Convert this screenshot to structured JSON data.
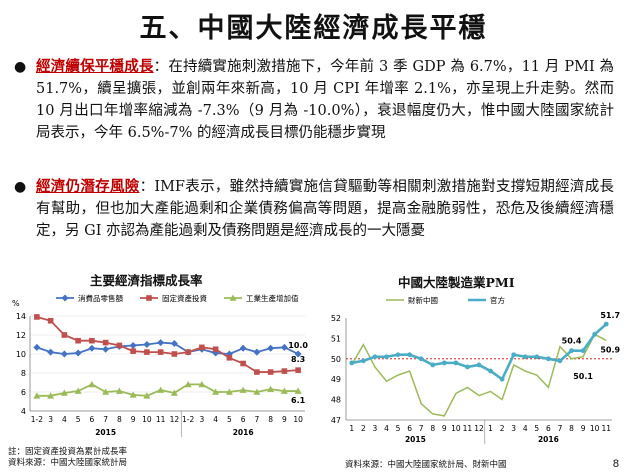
{
  "title": "五、中國大陸經濟成長平穩",
  "bullets": [
    {
      "symbol": "●",
      "highlight": "經濟續保平穩成長",
      "text": "：在持續實施刺激措施下，今年前 3 季 GDP 為 6.7%，11 月 PMI 為 51.7%，續呈擴張，並創兩年來新高，10 月 CPI 年增率 2.1%，亦呈現上升走勢。然而 10 月出口年增率縮減為 -7.3%（9 月為 -10.0%），衰退幅度仍大，惟中國大陸國家統計局表示，今年 6.5%-7% 的經濟成長目標仍能穩步實現"
    },
    {
      "symbol": "●",
      "highlight": "經濟仍潛存風險",
      "text": "：IMF表示，雖然持續實施信貸驅動等相關刺激措施對支撐短期經濟成長有幫助，但也加大產能過剩和企業債務偏高等問題，提高金融脆弱性，恐危及後續經濟穩定，另 GI 亦認為產能過剩及債務問題是經濟成長的一大隱憂"
    }
  ],
  "chart_data": [
    {
      "type": "line",
      "title": "主要經濟指標成長率",
      "ylabel": "%",
      "ylim": [
        4,
        14
      ],
      "yticks": [
        4,
        6,
        8,
        10,
        12,
        14
      ],
      "categories": [
        "1-2",
        "3",
        "4",
        "5",
        "6",
        "7",
        "8",
        "9",
        "10",
        "11",
        "12",
        "1-2",
        "3",
        "4",
        "5",
        "6",
        "7",
        "8",
        "9",
        "10"
      ],
      "year_labels": [
        "2015",
        "2016"
      ],
      "series": [
        {
          "name": "消費品零售額",
          "color": "#4472c4",
          "marker": "diamond",
          "values": [
            10.7,
            10.2,
            10.0,
            10.1,
            10.6,
            10.5,
            10.8,
            10.9,
            11.0,
            11.2,
            11.1,
            10.2,
            10.5,
            10.1,
            10.0,
            10.6,
            10.2,
            10.6,
            10.7,
            10.0
          ]
        },
        {
          "name": "固定資產投資",
          "color": "#c0504d",
          "marker": "square",
          "values": [
            13.9,
            13.5,
            12.0,
            11.4,
            11.4,
            11.2,
            10.9,
            10.3,
            10.2,
            10.2,
            10.0,
            10.2,
            10.7,
            10.5,
            9.6,
            9.0,
            8.1,
            8.1,
            8.2,
            8.3
          ]
        },
        {
          "name": "工業生產增加值",
          "color": "#9bbb59",
          "marker": "triangle",
          "values": [
            5.6,
            5.6,
            5.9,
            6.1,
            6.8,
            6.0,
            6.1,
            5.7,
            5.6,
            6.2,
            5.9,
            6.8,
            6.8,
            6.0,
            6.0,
            6.2,
            6.0,
            6.3,
            6.1,
            6.1
          ]
        }
      ],
      "end_labels": [
        "10.0",
        "8.3",
        "6.1"
      ]
    },
    {
      "type": "line",
      "title": "中國大陸製造業PMI",
      "ylim": [
        47,
        52
      ],
      "yticks": [
        47,
        48,
        49,
        50,
        51,
        52
      ],
      "categories": [
        "1",
        "2",
        "3",
        "4",
        "5",
        "6",
        "7",
        "8",
        "9",
        "10",
        "11",
        "12",
        "1",
        "2",
        "3",
        "4",
        "5",
        "6",
        "7",
        "8",
        "9",
        "10",
        "11"
      ],
      "year_labels": [
        "2015",
        "2016"
      ],
      "series": [
        {
          "name": "財新中國",
          "color": "#9bbb59",
          "values": [
            49.7,
            50.7,
            49.6,
            48.9,
            49.2,
            49.4,
            47.8,
            47.3,
            47.2,
            48.3,
            48.6,
            48.2,
            48.4,
            48.0,
            49.7,
            49.4,
            49.2,
            48.6,
            50.6,
            50.0,
            50.1,
            51.2,
            50.9
          ]
        },
        {
          "name": "官方",
          "color": "#4bacc6",
          "values": [
            49.8,
            49.9,
            50.1,
            50.1,
            50.2,
            50.2,
            50.0,
            49.7,
            49.8,
            49.8,
            49.6,
            49.7,
            49.4,
            49.0,
            50.2,
            50.1,
            50.1,
            50.0,
            49.9,
            50.4,
            50.4,
            51.2,
            51.7
          ]
        }
      ],
      "value_labels": [
        "51.7",
        "50.4",
        "50.9",
        "50.1"
      ]
    }
  ],
  "notes": {
    "left": [
      "註：固定資產投資為累計成長率",
      "資料來源：中國大陸國家統計局"
    ],
    "right": "資料來源：中國大陸國家統計局、財新中國"
  },
  "page_number": "8"
}
